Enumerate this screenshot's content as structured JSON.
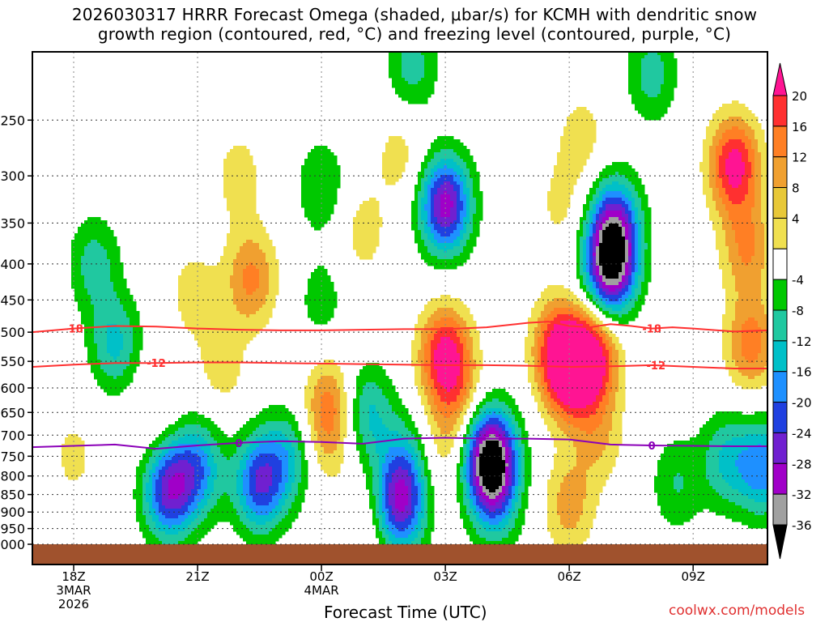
{
  "title": {
    "line1": "2026030317 HRRR Forecast Omega (shaded, μbar/s) for KCMH with dendritic snow",
    "line2": "growth region (contoured, red, °C) and freezing level (contoured, purple, °C)"
  },
  "xlabel": "Forecast Time (UTC)",
  "credit": "coolwx.com/models",
  "chart_data": {
    "type": "heatmap",
    "x_ticks": [
      {
        "hour": 1,
        "label": "18Z",
        "label2": "3MAR",
        "label3": "2026"
      },
      {
        "hour": 4,
        "label": "21Z"
      },
      {
        "hour": 7,
        "label": "00Z",
        "label2": "4MAR"
      },
      {
        "hour": 10,
        "label": "03Z"
      },
      {
        "hour": 13,
        "label": "06Z"
      },
      {
        "hour": 16,
        "label": "09Z"
      }
    ],
    "xlim_hours": [
      0,
      17.8
    ],
    "y_ticks": [
      250,
      300,
      350,
      400,
      450,
      500,
      550,
      600,
      650,
      700,
      750,
      800,
      850,
      900,
      950,
      1000
    ],
    "ylim_hPa": [
      200,
      1000
    ],
    "yscale": "log-pressure",
    "grid": true,
    "ground_color": "#a0522d",
    "colorbar": {
      "labels": [
        "20",
        "16",
        "12",
        "8",
        "4",
        "-4",
        "-8",
        "-12",
        "-16",
        "-20",
        "-24",
        "-28",
        "-32",
        "-36"
      ],
      "colors": [
        "#ff1493",
        "#ff3030",
        "#ff7f24",
        "#f0a030",
        "#e8c838",
        "#f0e050",
        "#ffffff",
        "#00c800",
        "#20c8a0",
        "#00c0c8",
        "#1e90ff",
        "#2040e0",
        "#7020d0",
        "#a000c8",
        "#a0a0a0",
        "#000000"
      ]
    },
    "omega_centers": [
      {
        "x": 10.0,
        "p": 330,
        "v": -30
      },
      {
        "x": 8.9,
        "p": 280,
        "v": 6
      },
      {
        "x": 9.2,
        "p": 210,
        "v": -10
      },
      {
        "x": 10.0,
        "p": 540,
        "v": 22
      },
      {
        "x": 10.3,
        "p": 630,
        "v": 8
      },
      {
        "x": 11.1,
        "p": 755,
        "v": -40
      },
      {
        "x": 11.2,
        "p": 870,
        "v": -12
      },
      {
        "x": 12.7,
        "p": 520,
        "v": 14
      },
      {
        "x": 13.0,
        "p": 570,
        "v": 22
      },
      {
        "x": 13.6,
        "p": 540,
        "v": 20
      },
      {
        "x": 12.8,
        "p": 330,
        "v": 5
      },
      {
        "x": 13.0,
        "p": 880,
        "v": 10
      },
      {
        "x": 13.7,
        "p": 700,
        "v": 8
      },
      {
        "x": 14.0,
        "p": 405,
        "v": -34
      },
      {
        "x": 14.1,
        "p": 350,
        "v": -22
      },
      {
        "x": 15.0,
        "p": 215,
        "v": -10
      },
      {
        "x": 13.3,
        "p": 265,
        "v": 6
      },
      {
        "x": 17.0,
        "p": 290,
        "v": 22
      },
      {
        "x": 17.3,
        "p": 380,
        "v": 12
      },
      {
        "x": 17.4,
        "p": 520,
        "v": 14
      },
      {
        "x": 16.8,
        "p": 760,
        "v": -12
      },
      {
        "x": 17.7,
        "p": 780,
        "v": -18
      },
      {
        "x": 15.6,
        "p": 820,
        "v": -8
      },
      {
        "x": 2.0,
        "p": 520,
        "v": -13
      },
      {
        "x": 1.0,
        "p": 750,
        "v": 5
      },
      {
        "x": 1.5,
        "p": 400,
        "v": -10
      },
      {
        "x": 3.9,
        "p": 440,
        "v": 6
      },
      {
        "x": 5.3,
        "p": 420,
        "v": 13
      },
      {
        "x": 4.6,
        "p": 560,
        "v": 6
      },
      {
        "x": 3.0,
        "p": 650,
        "v": 4
      },
      {
        "x": 5.0,
        "p": 300,
        "v": 6
      },
      {
        "x": 3.3,
        "p": 840,
        "v": -25
      },
      {
        "x": 4.0,
        "p": 780,
        "v": -17
      },
      {
        "x": 5.5,
        "p": 820,
        "v": -23
      },
      {
        "x": 6.2,
        "p": 750,
        "v": -12
      },
      {
        "x": 7.0,
        "p": 310,
        "v": -8
      },
      {
        "x": 7.0,
        "p": 450,
        "v": -6
      },
      {
        "x": 8.0,
        "p": 360,
        "v": 6
      },
      {
        "x": 7.2,
        "p": 640,
        "v": 14
      },
      {
        "x": 7.1,
        "p": 740,
        "v": 4
      },
      {
        "x": 8.1,
        "p": 650,
        "v": -13
      },
      {
        "x": 8.9,
        "p": 880,
        "v": -26
      },
      {
        "x": 9.0,
        "p": 760,
        "v": -10
      },
      {
        "x": 8.1,
        "p": 950,
        "v": 5
      },
      {
        "x": 9.9,
        "p": 740,
        "v": 5
      }
    ],
    "dgz_contours": [
      {
        "label": "-18",
        "color": "#ff3030",
        "points": [
          [
            0,
            500
          ],
          [
            1.0,
            494
          ],
          [
            2.0,
            490
          ],
          [
            3.0,
            491
          ],
          [
            4.0,
            494
          ],
          [
            5.0,
            496
          ],
          [
            6.0,
            497
          ],
          [
            7.0,
            497
          ],
          [
            8.0,
            496
          ],
          [
            9.0,
            495
          ],
          [
            10.0,
            495
          ],
          [
            11.0,
            492
          ],
          [
            12.0,
            485
          ],
          [
            12.5,
            483
          ],
          [
            13.0,
            490
          ],
          [
            13.5,
            492
          ],
          [
            14.0,
            487
          ],
          [
            14.5,
            490
          ],
          [
            15.0,
            494
          ],
          [
            15.5,
            492
          ],
          [
            16.0,
            494
          ],
          [
            17.0,
            499
          ],
          [
            17.8,
            497
          ]
        ],
        "label_at": [
          [
            1.0,
            494
          ],
          [
            15.0,
            494
          ]
        ]
      },
      {
        "label": "-12",
        "color": "#ff3030",
        "points": [
          [
            0,
            560
          ],
          [
            1.0,
            556
          ],
          [
            2.0,
            553
          ],
          [
            3.0,
            553
          ],
          [
            4.0,
            552
          ],
          [
            5.0,
            552
          ],
          [
            6.0,
            553
          ],
          [
            7.0,
            554
          ],
          [
            8.0,
            555
          ],
          [
            9.0,
            556
          ],
          [
            10.0,
            557
          ],
          [
            11.0,
            557
          ],
          [
            12.0,
            558
          ],
          [
            13.0,
            560
          ],
          [
            14.0,
            559
          ],
          [
            15.0,
            557
          ],
          [
            16.0,
            560
          ],
          [
            17.0,
            563
          ],
          [
            17.8,
            563
          ]
        ],
        "label_at": [
          [
            3.0,
            553
          ],
          [
            15.1,
            557
          ]
        ]
      }
    ],
    "freezing_level": {
      "label": "0",
      "color": "#8b00b8",
      "points": [
        [
          0,
          728
        ],
        [
          1.0,
          725
        ],
        [
          2.0,
          722
        ],
        [
          3.0,
          732
        ],
        [
          4.0,
          724
        ],
        [
          5.0,
          718
        ],
        [
          6.0,
          714
        ],
        [
          7.0,
          716
        ],
        [
          8.0,
          720
        ],
        [
          9.0,
          708
        ],
        [
          10.0,
          706
        ],
        [
          11.0,
          708
        ],
        [
          12.0,
          708
        ],
        [
          13.0,
          710
        ],
        [
          14.0,
          722
        ],
        [
          15.0,
          724
        ],
        [
          16.0,
          725
        ],
        [
          17.0,
          726
        ],
        [
          17.8,
          726
        ]
      ],
      "label_at": [
        [
          5.0,
          718
        ],
        [
          15.0,
          724
        ]
      ]
    }
  }
}
